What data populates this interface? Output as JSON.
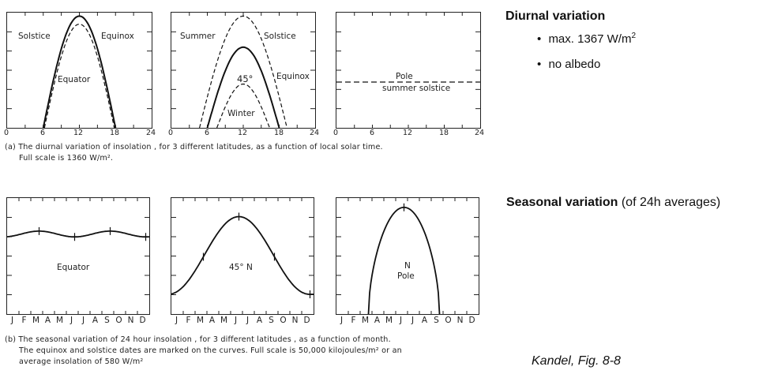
{
  "chart_data": [
    {
      "type": "line",
      "panel": "a1",
      "xlim": [
        0,
        24
      ],
      "xticks": [
        "0",
        "6",
        "12",
        "18",
        "24"
      ],
      "series": [
        {
          "name": "Equinox",
          "style": "solid",
          "x": [
            6,
            12,
            18
          ]
        },
        {
          "name": "Solstice",
          "style": "dashed",
          "x": [
            6,
            12,
            18
          ]
        }
      ],
      "labels": [
        "Solstice",
        "Equinox",
        "Equator"
      ]
    },
    {
      "type": "line",
      "panel": "a2",
      "xlim": [
        0,
        24
      ],
      "xticks": [
        "0",
        "6",
        "12",
        "18",
        "24"
      ],
      "series": [
        {
          "name": "Summer Solstice",
          "style": "dashed",
          "x": [
            4.7,
            12,
            19.3
          ]
        },
        {
          "name": "Equinox",
          "style": "solid",
          "x": [
            6,
            12,
            18
          ]
        },
        {
          "name": "Winter",
          "style": "dashed",
          "x": [
            7.6,
            12,
            16.4
          ]
        }
      ],
      "labels": [
        "Summer",
        "Solstice",
        "45°",
        "Equinox",
        "Winter"
      ]
    },
    {
      "type": "line",
      "panel": "a3",
      "xlim": [
        0,
        24
      ],
      "xticks": [
        "0",
        "6",
        "12",
        "18",
        "24"
      ],
      "series": [
        {
          "name": "Pole summer solstice",
          "style": "dashed",
          "x": [
            0,
            24
          ]
        }
      ],
      "labels": [
        "Pole",
        "summer solstice"
      ]
    },
    {
      "type": "line",
      "panel": "b1",
      "months": [
        "J",
        "F",
        "M",
        "A",
        "M",
        "J",
        "J",
        "A",
        "S",
        "O",
        "N",
        "D"
      ],
      "labels": [
        "Equator"
      ]
    },
    {
      "type": "line",
      "panel": "b2",
      "months": [
        "J",
        "F",
        "M",
        "A",
        "M",
        "J",
        "J",
        "A",
        "S",
        "O",
        "N",
        "D"
      ],
      "labels": [
        "45° N"
      ]
    },
    {
      "type": "line",
      "panel": "b3",
      "months": [
        "J",
        "F",
        "M",
        "A",
        "M",
        "J",
        "J",
        "A",
        "S",
        "O",
        "N",
        "D"
      ],
      "labels": [
        "N",
        "Pole"
      ]
    }
  ],
  "captions": {
    "a_line1": "(a) The diurnal variation of insolation , for 3 different latitudes, as a  function of local solar time.",
    "a_line2": "Full scale is 1360 W/m².",
    "b_line1": "(b) The seasonal variation of 24 hour insolation , for 3 different latitudes , as a function of month.",
    "b_line2": "The equinox and solstice dates are marked on the curves. Full scale is 50,000 kilojoules/m² or an",
    "b_line3": "average insolation of 580 W/m²"
  },
  "side": {
    "diurnal_title": "Diurnal variation",
    "item1_text": "max. 1367 W/m",
    "item1_sup": "2",
    "item2": "no albedo",
    "bullet": "•",
    "seasonal_title": "Seasonal variation",
    "seasonal_rest": " (of 24h averages)",
    "credit": "Kandel, Fig. 8-8"
  }
}
